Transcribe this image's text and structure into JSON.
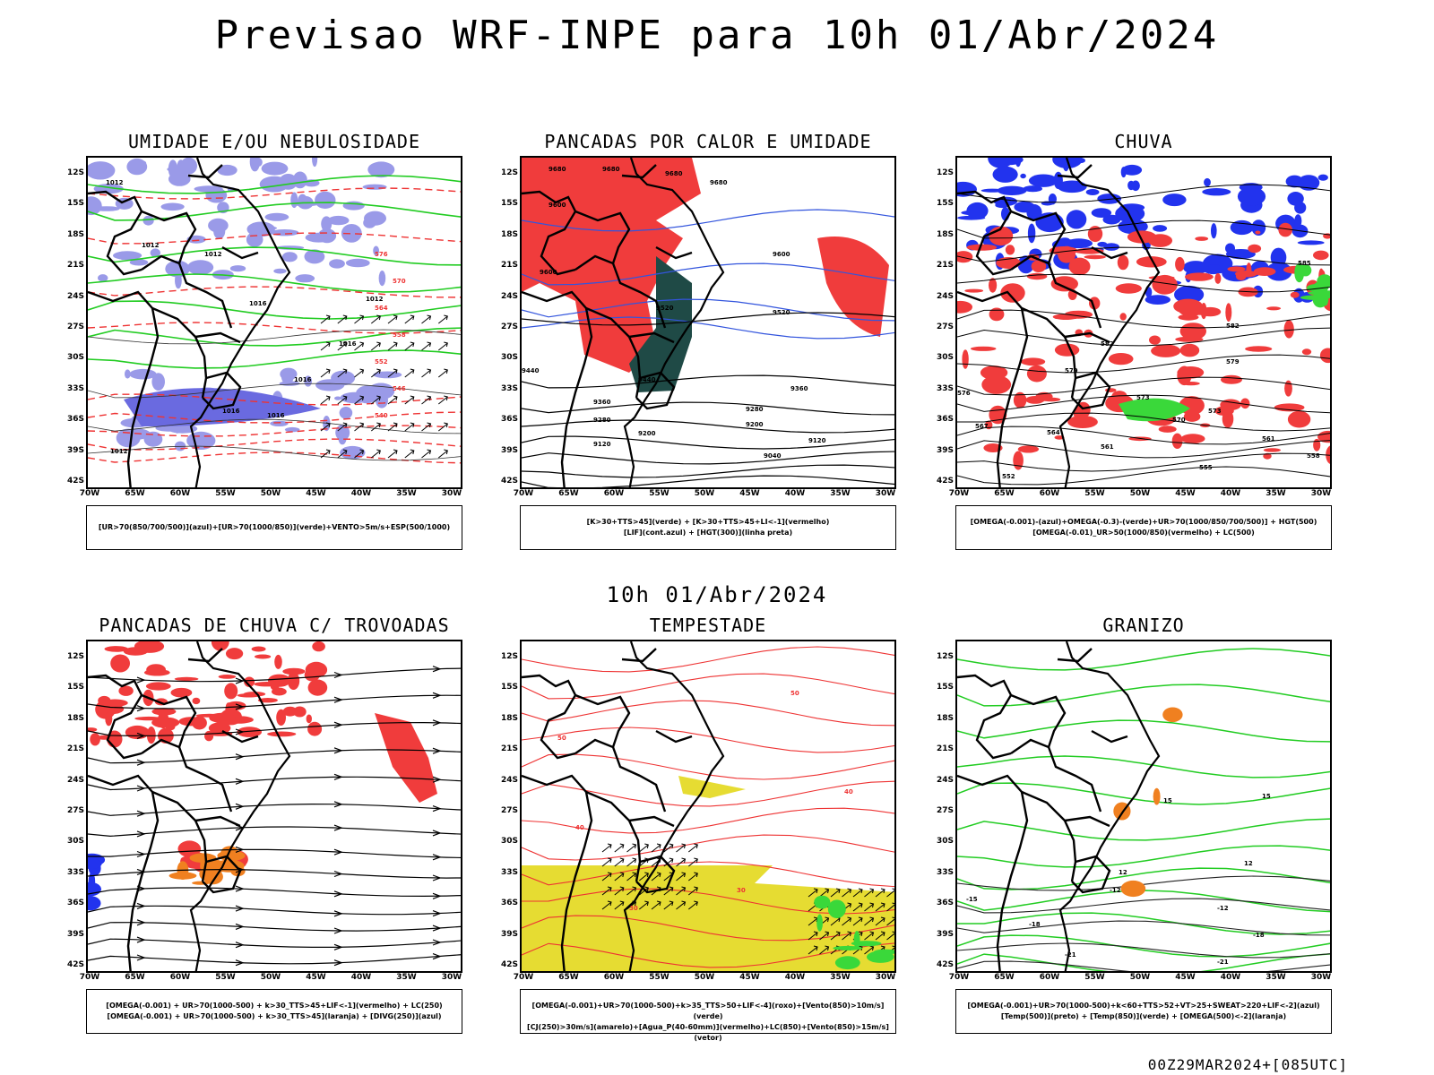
{
  "main_title": "Previsao WRF-INPE  para 10h 01/Abr/2024",
  "mid_title": "10h 01/Abr/2024",
  "footer": "00Z29MAR2024+[085UTC]",
  "lat_labels": [
    "12S",
    "15S",
    "18S",
    "21S",
    "24S",
    "27S",
    "30S",
    "33S",
    "36S",
    "39S",
    "42S"
  ],
  "lon_labels": [
    "70W",
    "65W",
    "60W",
    "55W",
    "50W",
    "45W",
    "40W",
    "35W",
    "30W"
  ],
  "colors": {
    "blue_fill": "#9a9ae8",
    "red_fill": "#f03c3c",
    "dark_fill": "#1f4a46",
    "yellow_fill": "#e6dc32",
    "green_fill": "#3ad83a",
    "blue_pix": "#2233ee",
    "green_line": "#22cc22",
    "red_line": "#ee3333",
    "orange": "#f08020"
  },
  "panels": [
    {
      "title": "UMIDADE E/OU NEBULOSIDADE",
      "legend": [
        "[UR>70(850/700/500)](azul)+[UR>70(1000/850)](verde)+VENTO>5m/s+ESP(500/1000)"
      ],
      "contour_labels": [
        "1012",
        "1012",
        "1012",
        "1016",
        "1016",
        "1016",
        "1012",
        "1012",
        "1016",
        "1016"
      ],
      "red_labels": [
        "576",
        "570",
        "564",
        "558",
        "552",
        "546",
        "540"
      ]
    },
    {
      "title": "PANCADAS POR CALOR E UMIDADE",
      "legend": [
        "[K>30+TTS>45](verde) + [K>30+TTS>45+LI<-1](vermelho)",
        "[LIF](cont.azul) + [HGT(300)](linha preta)"
      ],
      "contour_labels": [
        "9680",
        "9680",
        "9680",
        "9680",
        "9600",
        "9600",
        "9600",
        "9520",
        "9520",
        "9440",
        "9440",
        "9360",
        "9360",
        "9280",
        "9280",
        "9200",
        "9200",
        "9120",
        "9120",
        "9040"
      ]
    },
    {
      "title": "CHUVA",
      "legend": [
        "[OMEGA(-0.001)-(azul)+OMEGA(-0.3)-(verde)+UR>70(1000/850/700/500)] + HGT(500)",
        "[OMEGA(-0.01)_UR>50(1000/850)(vermelho) + LC(500)"
      ],
      "contour_labels": [
        "585",
        "582",
        "582",
        "579",
        "579",
        "576",
        "573",
        "573",
        "570",
        "567",
        "564",
        "561",
        "561",
        "558",
        "555",
        "552"
      ]
    },
    {
      "title": "PANCADAS DE CHUVA C/ TROVOADAS",
      "legend": [
        "[OMEGA(-0.001) + UR>70(1000-500) + k>30_TTS>45+LIF<-1](vermelho) + LC(250)",
        "[OMEGA(-0.001) + UR>70(1000-500) + k>30_TTS>45](laranja) + [DIVG(250)](azul)"
      ]
    },
    {
      "title": "TEMPESTADE",
      "legend": [
        "[OMEGA(-0.001)+UR>70(1000-500)+k>35_TTS>50+LIF<-4](roxo)+[Vento(850)>10m/s](verde)",
        "[CJ(250)>30m/s](amarelo)+[Agua_P(40-60mm)](vermelho)+LC(850)+[Vento(850)>15m/s](vetor)"
      ],
      "contour_labels": [
        "50",
        "50",
        "40",
        "40",
        "30",
        "30"
      ]
    },
    {
      "title": "GRANIZO",
      "legend": [
        "[OMEGA(-0.001)+UR>70(1000-500)+k<60+TTS>52+VT>25+SWEAT>220+LIF<-2](azul)",
        "[Temp(500)](preto) + [Temp(850)](verde) + [OMEGA(500)<-2](laranja)"
      ],
      "contour_labels": [
        "15",
        "15",
        "12",
        "12",
        "-12",
        "-12",
        "-15",
        "-18",
        "-18",
        "-21",
        "-21"
      ]
    }
  ]
}
